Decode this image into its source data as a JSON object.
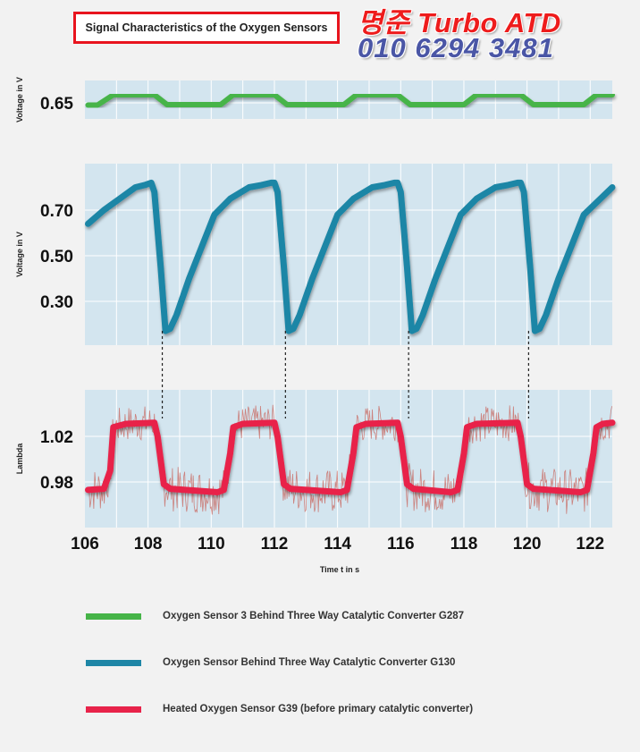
{
  "header": {
    "title": "Signal Characteristics of the Oxygen Sensors",
    "watermark_line1": "명준 Turbo ATD",
    "watermark_line2": "010 6294 3481"
  },
  "colors": {
    "panel_bg": "#d3e5ef",
    "grid": "#ffffff",
    "g287": "#46b448",
    "g130": "#1e86a6",
    "g39": "#e8234a",
    "g39_raw": "#c8584e"
  },
  "chart_data": [
    {
      "type": "line",
      "panel": "top",
      "ylabel": "Voltage in V",
      "y_ticks": [
        0.65
      ],
      "ylim": [
        0.62,
        0.68
      ],
      "xlim": [
        106,
        122.7
      ],
      "grid": true,
      "series": [
        {
          "name": "Oxygen Sensor 3 Behind Three Way Catalytic Converter G287",
          "color": "#46b448",
          "x": [
            106.1,
            106.4,
            106.9,
            108.2,
            108.6,
            110.3,
            110.7,
            112.0,
            112.4,
            114.2,
            114.6,
            115.9,
            116.3,
            118.0,
            118.4,
            119.8,
            120.2,
            121.8,
            122.2,
            122.7
          ],
          "y": [
            0.645,
            0.645,
            0.668,
            0.668,
            0.646,
            0.646,
            0.668,
            0.668,
            0.646,
            0.646,
            0.668,
            0.668,
            0.646,
            0.646,
            0.668,
            0.668,
            0.646,
            0.646,
            0.668,
            0.668
          ]
        }
      ]
    },
    {
      "type": "line",
      "panel": "middle",
      "ylabel": "Voltage in V",
      "y_ticks": [
        0.7,
        0.5,
        0.3
      ],
      "ylim": [
        0.1,
        0.88
      ],
      "xlim": [
        106,
        122.7
      ],
      "grid": true,
      "series": [
        {
          "name": "Oxygen Sensor Behind Three Way Catalytic Converter G130",
          "color": "#1e86a6",
          "x": [
            106.1,
            106.6,
            107.2,
            107.6,
            107.9,
            108.1,
            108.2,
            108.4,
            108.55,
            108.7,
            108.9,
            109.3,
            110.1,
            110.6,
            111.2,
            111.6,
            111.9,
            112.0,
            112.1,
            112.3,
            112.45,
            112.6,
            112.8,
            113.2,
            114.0,
            114.5,
            115.1,
            115.5,
            115.8,
            115.9,
            116.0,
            116.2,
            116.35,
            116.5,
            116.7,
            117.1,
            117.9,
            118.4,
            119.0,
            119.4,
            119.7,
            119.8,
            119.9,
            120.1,
            120.25,
            120.4,
            120.6,
            121.0,
            121.8,
            122.7
          ],
          "y": [
            0.64,
            0.7,
            0.76,
            0.8,
            0.81,
            0.82,
            0.78,
            0.45,
            0.17,
            0.18,
            0.24,
            0.4,
            0.68,
            0.75,
            0.8,
            0.81,
            0.82,
            0.82,
            0.78,
            0.45,
            0.17,
            0.18,
            0.24,
            0.4,
            0.68,
            0.75,
            0.8,
            0.81,
            0.82,
            0.82,
            0.78,
            0.45,
            0.17,
            0.18,
            0.24,
            0.4,
            0.68,
            0.75,
            0.8,
            0.81,
            0.82,
            0.82,
            0.78,
            0.45,
            0.17,
            0.18,
            0.24,
            0.4,
            0.68,
            0.8
          ]
        }
      ]
    },
    {
      "type": "line",
      "panel": "bottom",
      "ylabel": "Lambda",
      "y_ticks": [
        1.02,
        0.98
      ],
      "ylim": [
        0.94,
        1.06
      ],
      "xlim": [
        106,
        122.7
      ],
      "grid": true,
      "xlabel": "Time t in s",
      "x_ticks": [
        106,
        108,
        110,
        112,
        114,
        116,
        118,
        120,
        122
      ],
      "series": [
        {
          "name": "Heated Oxygen Sensor G39 (before primary catalytic converter)",
          "color": "#e8234a",
          "x": [
            106.1,
            106.6,
            106.8,
            106.9,
            107.3,
            108.2,
            108.3,
            108.5,
            108.7,
            110.2,
            110.4,
            110.6,
            110.7,
            111.0,
            112.0,
            112.1,
            112.3,
            112.5,
            114.1,
            114.3,
            114.5,
            114.6,
            114.9,
            115.9,
            116.0,
            116.2,
            116.4,
            117.6,
            117.8,
            118.0,
            118.1,
            118.4,
            119.7,
            119.8,
            120.0,
            120.2,
            121.7,
            121.9,
            122.1,
            122.2,
            122.4,
            122.7
          ],
          "y": [
            0.973,
            0.974,
            0.99,
            1.028,
            1.031,
            1.032,
            1.02,
            0.978,
            0.974,
            0.971,
            0.973,
            1.005,
            1.028,
            1.031,
            1.032,
            1.02,
            0.978,
            0.974,
            0.971,
            0.973,
            1.005,
            1.028,
            1.031,
            1.032,
            1.02,
            0.978,
            0.974,
            0.971,
            0.973,
            1.005,
            1.028,
            1.031,
            1.032,
            1.02,
            0.978,
            0.974,
            0.971,
            0.973,
            1.005,
            1.028,
            1.031,
            1.032
          ]
        }
      ]
    }
  ],
  "legend": [
    {
      "label": "Oxygen Sensor 3 Behind Three Way Catalytic Converter G287",
      "color": "#46b448"
    },
    {
      "label": "Oxygen Sensor Behind Three Way Catalytic Converter G130",
      "color": "#1e86a6"
    },
    {
      "label": "Heated Oxygen Sensor G39 (before primary catalytic converter)",
      "color": "#e8234a"
    }
  ],
  "sync_markers_x": [
    108.45,
    112.35,
    116.25,
    120.05
  ]
}
